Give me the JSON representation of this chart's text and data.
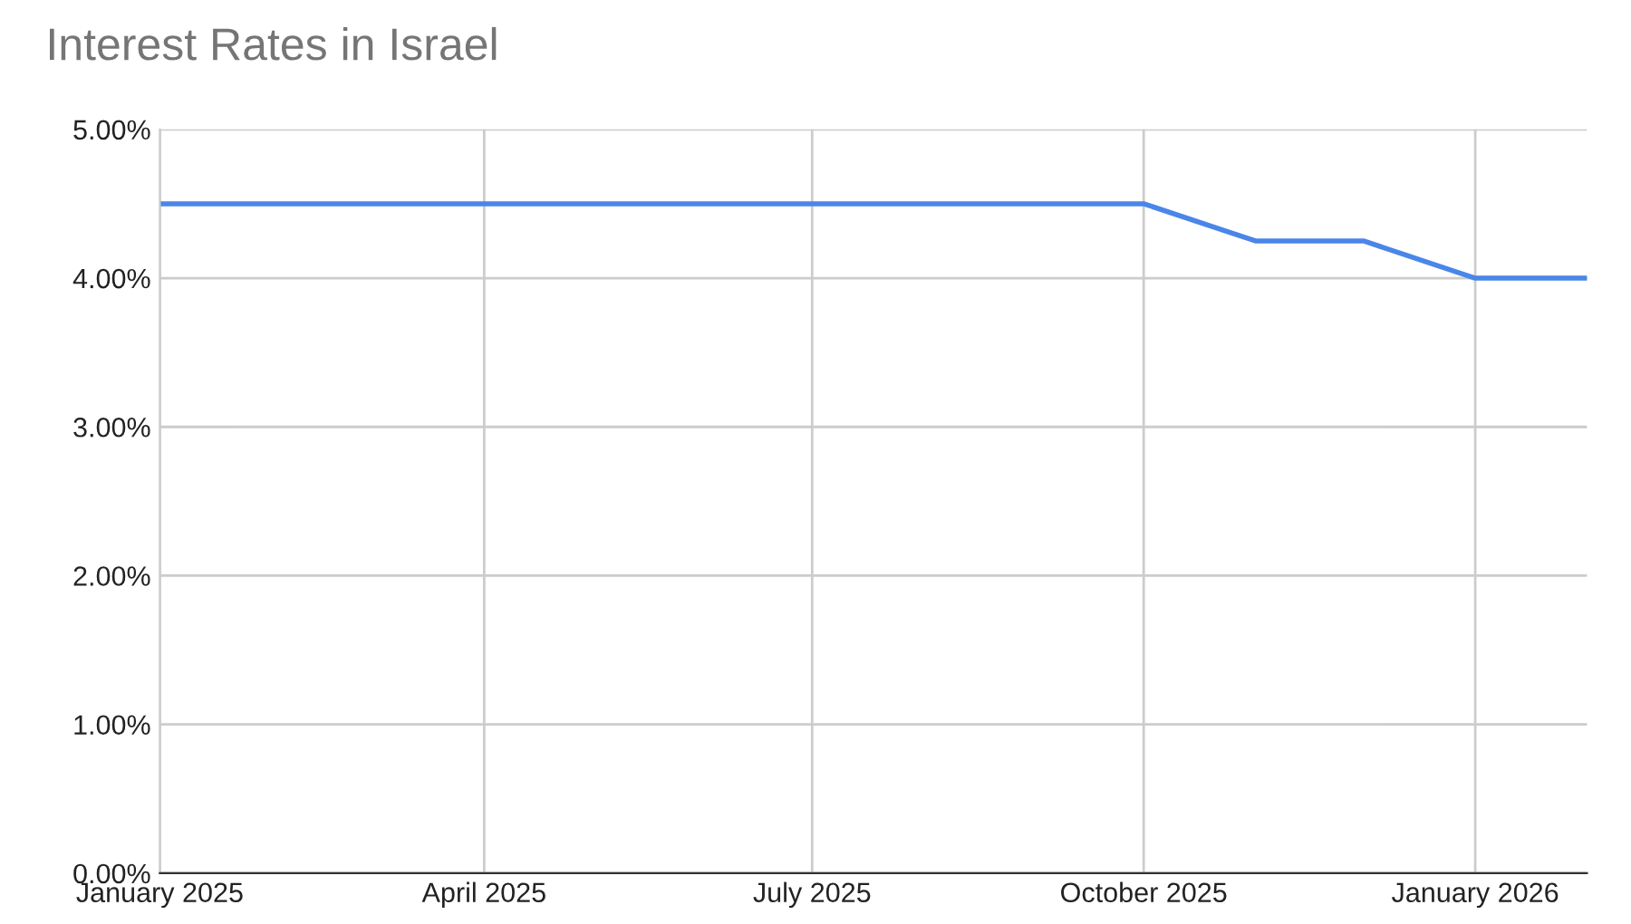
{
  "chart_data": {
    "type": "line",
    "title": "Interest Rates in Israel",
    "x": [
      "2025-01",
      "2025-02",
      "2025-03",
      "2025-04",
      "2025-05",
      "2025-06",
      "2025-07",
      "2025-08",
      "2025-09",
      "2025-10",
      "2025-11",
      "2025-12",
      "2026-01",
      "2026-02"
    ],
    "series": [
      {
        "color": "#4a86e8",
        "values": [
          4.5,
          4.5,
          4.5,
          4.5,
          4.5,
          4.5,
          4.5,
          4.5,
          4.5,
          4.5,
          4.25,
          4.25,
          4.0,
          4.0
        ]
      }
    ],
    "xlim": [
      "2025-01",
      "2026-02"
    ],
    "xticks": [
      {
        "value": "2025-01",
        "label": "January 2025"
      },
      {
        "value": "2025-04",
        "label": "April 2025"
      },
      {
        "value": "2025-07",
        "label": "July 2025"
      },
      {
        "value": "2025-10",
        "label": "October 2025"
      },
      {
        "value": "2026-01",
        "label": "January 2026"
      }
    ],
    "ylim": [
      0,
      5
    ],
    "yticks": [
      {
        "value": 0,
        "label": "0.00%"
      },
      {
        "value": 1,
        "label": "1.00%"
      },
      {
        "value": 2,
        "label": "2.00%"
      },
      {
        "value": 3,
        "label": "3.00%"
      },
      {
        "value": 4,
        "label": "4.00%"
      },
      {
        "value": 5,
        "label": "5.00%"
      }
    ],
    "grid": true,
    "marker": "none",
    "line_style": "solid"
  }
}
